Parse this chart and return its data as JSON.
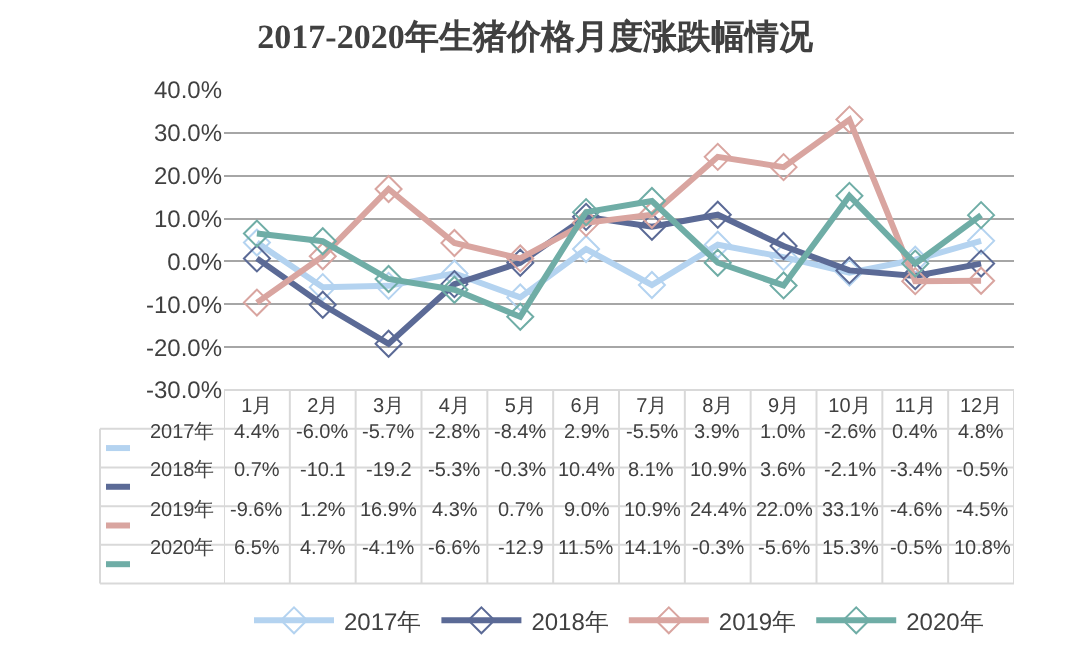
{
  "chart_data": {
    "type": "line",
    "title": "2017-2020年生猪价格月度涨跌幅情况",
    "categories": [
      "1月",
      "2月",
      "3月",
      "4月",
      "5月",
      "6月",
      "7月",
      "8月",
      "9月",
      "10月",
      "11月",
      "12月"
    ],
    "series": [
      {
        "name": "2017年",
        "color": "#b4d3f0",
        "values": [
          4.4,
          -6.0,
          -5.7,
          -2.8,
          -8.4,
          2.9,
          -5.5,
          3.9,
          1.0,
          -2.6,
          0.4,
          4.8
        ],
        "value_labels": [
          "4.4%",
          "-6.0%",
          "-5.7%",
          "-2.8%",
          "-8.4%",
          "2.9%",
          "-5.5%",
          "3.9%",
          "1.0%",
          "-2.6%",
          "0.4%",
          "4.8%"
        ]
      },
      {
        "name": "2018年",
        "color": "#5b6a96",
        "values": [
          0.7,
          -10.1,
          -19.2,
          -5.3,
          -0.3,
          10.4,
          8.1,
          10.9,
          3.6,
          -2.1,
          -3.4,
          -0.5
        ],
        "value_labels": [
          "0.7%",
          "-10.1",
          "-19.2",
          "-5.3%",
          "-0.3%",
          "10.4%",
          "8.1%",
          "10.9%",
          "3.6%",
          "-2.1%",
          "-3.4%",
          "-0.5%"
        ]
      },
      {
        "name": "2019年",
        "color": "#d9a5a0",
        "values": [
          -9.6,
          1.2,
          16.9,
          4.3,
          0.7,
          9.0,
          10.9,
          24.4,
          22.0,
          33.1,
          -4.6,
          -4.5
        ],
        "value_labels": [
          "-9.6%",
          "1.2%",
          "16.9%",
          "4.3%",
          "0.7%",
          "9.0%",
          "10.9%",
          "24.4%",
          "22.0%",
          "33.1%",
          "-4.6%",
          "-4.5%"
        ]
      },
      {
        "name": "2020年",
        "color": "#6fada6",
        "values": [
          6.5,
          4.7,
          -4.1,
          -6.6,
          -12.9,
          11.5,
          14.1,
          -0.3,
          -5.6,
          15.3,
          -0.5,
          10.8
        ],
        "value_labels": [
          "6.5%",
          "4.7%",
          "-4.1%",
          "-6.6%",
          "-12.9",
          "11.5%",
          "14.1%",
          "-0.3%",
          "-5.6%",
          "15.3%",
          "-0.5%",
          "10.8%"
        ]
      }
    ],
    "ylim": [
      -30,
      40
    ],
    "yticks": [
      {
        "value": -30,
        "label": "-30.0%"
      },
      {
        "value": -20,
        "label": "-20.0%"
      },
      {
        "value": -10,
        "label": "-10.0%"
      },
      {
        "value": 0,
        "label": "0.0%"
      },
      {
        "value": 10,
        "label": "10.0%"
      },
      {
        "value": 20,
        "label": "20.0%"
      },
      {
        "value": 30,
        "label": "30.0%"
      },
      {
        "value": 40,
        "label": "40.0%"
      }
    ],
    "grid": "y",
    "legend": "bottom",
    "marker": "diamond",
    "line_style": "solid"
  }
}
